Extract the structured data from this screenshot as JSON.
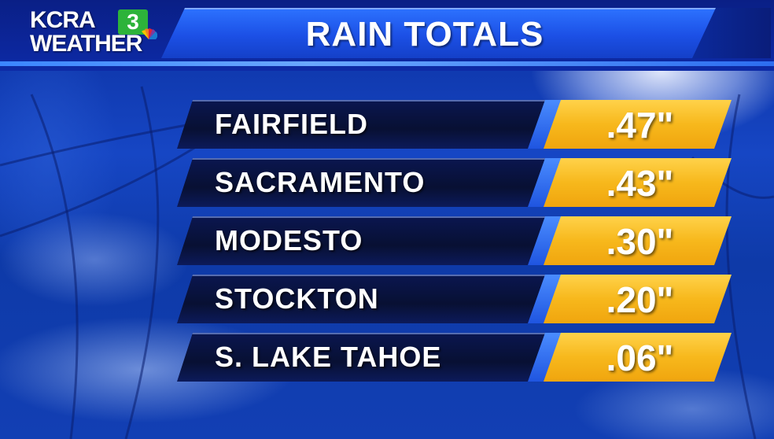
{
  "logo": {
    "brand": "KCRA",
    "channel": "3",
    "subtitle": "WEATHER",
    "network_icon": "peacock-icon"
  },
  "title": "RAIN TOTALS",
  "rows": [
    {
      "city": "FAIRFIELD",
      "amount": ".47\""
    },
    {
      "city": "SACRAMENTO",
      "amount": ".43\""
    },
    {
      "city": "MODESTO",
      "amount": ".30\""
    },
    {
      "city": "STOCKTON",
      "amount": ".20\""
    },
    {
      "city": "S. LAKE TAHOE",
      "amount": ".06\""
    }
  ],
  "colors": {
    "header_blue": "#1c50e6",
    "row_dark": "#081033",
    "value_gold": "#f7b81c",
    "accent_green": "#2db33a"
  }
}
